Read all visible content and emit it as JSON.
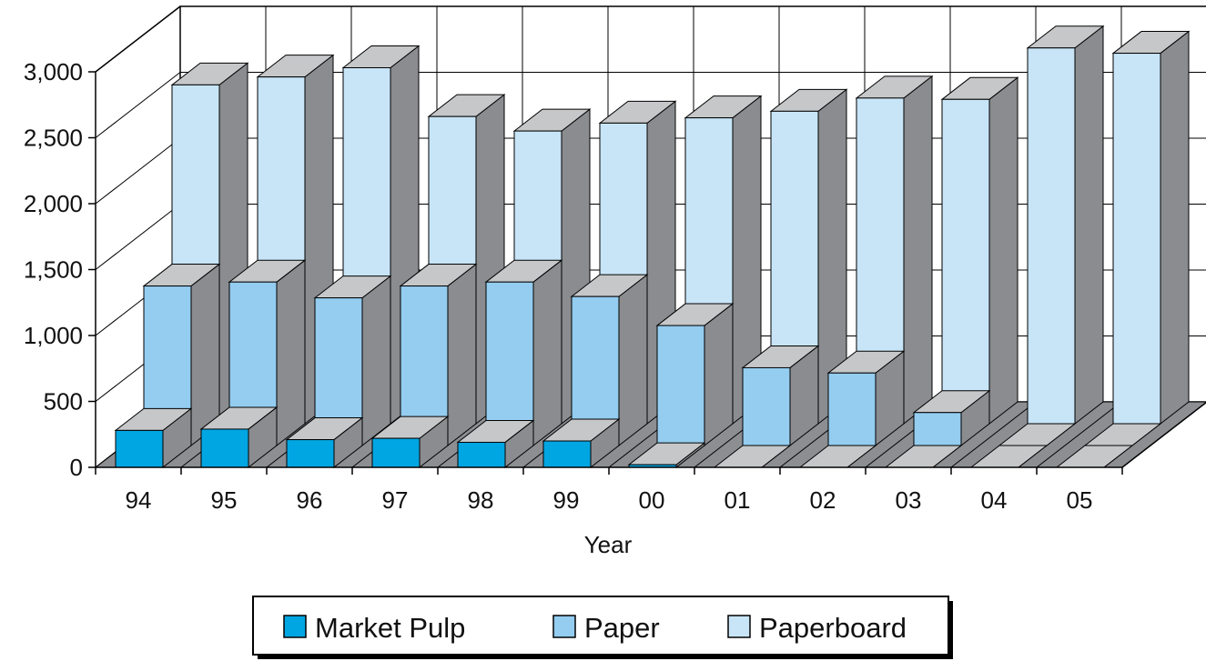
{
  "chart_data": {
    "type": "bar",
    "subtype": "3d-grouped-depth",
    "title": "",
    "xlabel": "Year",
    "ylabel": "",
    "categories": [
      "94",
      "95",
      "96",
      "97",
      "98",
      "99",
      "00",
      "01",
      "02",
      "03",
      "04",
      "05"
    ],
    "series": [
      {
        "name": "Market Pulp",
        "color": "#00a6e2",
        "values": [
          280,
          290,
          210,
          220,
          190,
          200,
          20,
          0,
          0,
          0,
          0,
          0
        ]
      },
      {
        "name": "Paper",
        "color": "#94cdf0",
        "values": [
          1210,
          1240,
          1120,
          1210,
          1240,
          1130,
          910,
          590,
          550,
          250,
          0,
          0
        ]
      },
      {
        "name": "Paperboard",
        "color": "#c8e5f8",
        "values": [
          2570,
          2630,
          2700,
          2330,
          2220,
          2280,
          2320,
          2370,
          2470,
          2460,
          2850,
          2810
        ]
      }
    ],
    "ylim": [
      0,
      3000
    ],
    "yticks": [
      "0",
      "500",
      "1,000",
      "1,500",
      "2,000",
      "2,500",
      "3,000"
    ],
    "grid": true,
    "legend_position": "bottom"
  }
}
